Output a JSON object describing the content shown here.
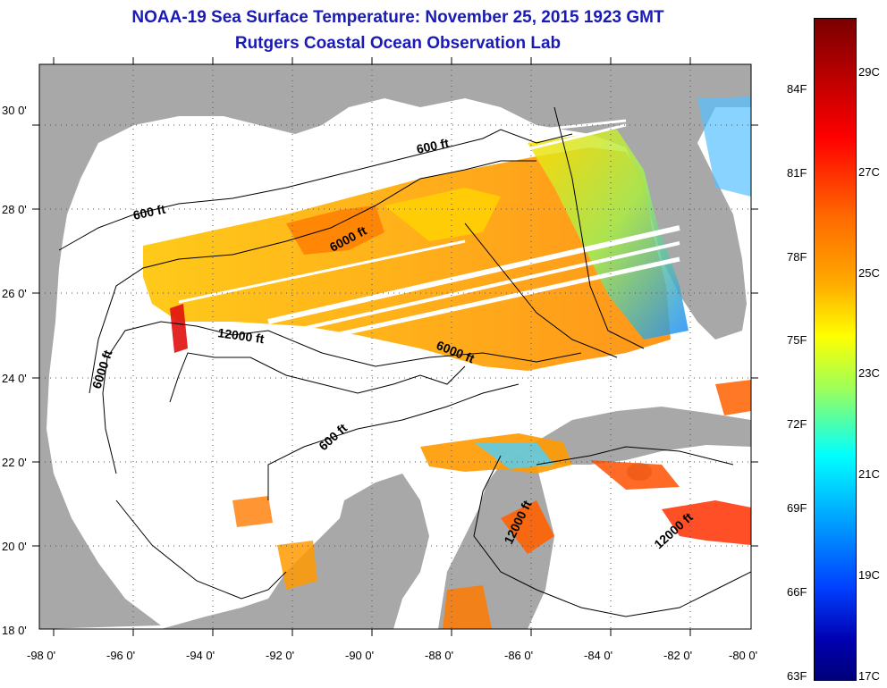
{
  "title": "NOAA-19 Sea Surface Temperature:  November 25, 2015 1923 GMT",
  "subtitle": "Rutgers Coastal Ocean Observation Lab",
  "x_axis": {
    "ticks": [
      "-98 0'",
      "-96 0'",
      "-94 0'",
      "-92 0'",
      "-90 0'",
      "-88 0'",
      "-86 0'",
      "-84 0'",
      "-82 0'",
      "-80 0'"
    ]
  },
  "y_axis": {
    "ticks": [
      "18 0'",
      "20 0'",
      "22 0'",
      "24 0'",
      "26 0'",
      "28 0'",
      "30 0'"
    ]
  },
  "contour_labels": [
    "600 ft",
    "600 ft",
    "6000 ft",
    "6000 ft",
    "6000 ft",
    "12000 ft",
    "600 ft",
    "12000 ft",
    "12000 ft"
  ],
  "colorbar": {
    "fahrenheit": [
      "84F",
      "81F",
      "78F",
      "75F",
      "72F",
      "69F",
      "66F",
      "63F"
    ],
    "celsius": [
      "29C",
      "27C",
      "25C",
      "23C",
      "21C",
      "19C",
      "17C"
    ]
  },
  "colors": {
    "title": "#1a1ab4",
    "land": "#a8a8a8",
    "ocean": "#ffffff"
  }
}
